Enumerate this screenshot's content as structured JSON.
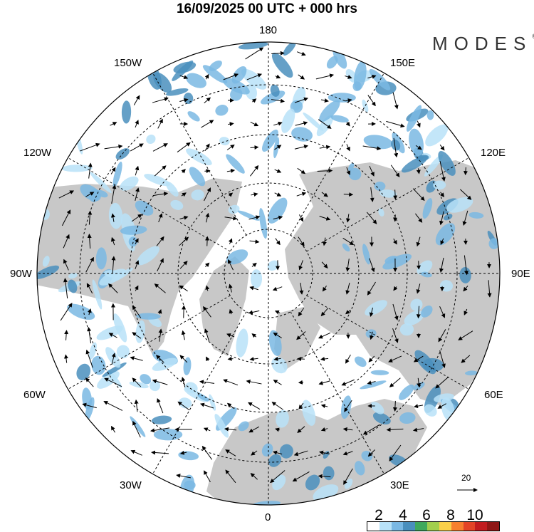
{
  "title": "16/09/2025  00 UTC  + 000 hrs",
  "logo": {
    "text": "MODES",
    "mark": "©"
  },
  "longitude_labels": {
    "top": "180",
    "bottom": "0",
    "left": "90W",
    "right": "90E",
    "upper_left_1": "150W",
    "upper_left_2": "120W",
    "upper_right_1": "150E",
    "upper_right_2": "120E",
    "lower_left_1": "60W",
    "lower_left_2": "30W",
    "lower_right_1": "60E",
    "lower_right_2": "30E"
  },
  "reference_vector": {
    "label": "20"
  },
  "legend": {
    "labels": [
      "2",
      "4",
      "6",
      "8",
      "10"
    ],
    "colors": [
      "#ffffff",
      "#b8e2f8",
      "#7ab8e3",
      "#4a8fbd",
      "#3fa95c",
      "#a2cf4e",
      "#fad04a",
      "#f7802f",
      "#e34427",
      "#c11c1f",
      "#8f1716"
    ]
  },
  "colors": {
    "land": "#c8c8c8",
    "ocean": "#ffffff",
    "light_blue": "#b8e2f8",
    "mid_blue": "#7ab8e3",
    "dark_blue": "#4a8fbd"
  }
}
